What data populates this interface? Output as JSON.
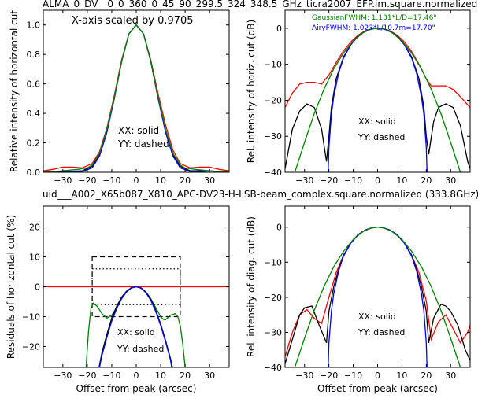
{
  "figure": {
    "top_title": "ALMA_0_DV__0_0_360_0_45_90_299.5_324_348.5_GHz_ticra2007_EFP.im.square.normalized",
    "mid_title": "uid___A002_X65b087_X810_APC-DV23-H-LSB-beam_complex.square.normalized (333.8GHz)",
    "mid_title_color": "#ff0000"
  },
  "colors": {
    "red": "#ff0000",
    "black": "#000000",
    "blue": "#0000ff",
    "green": "#008000"
  },
  "chart_data": [
    {
      "type": "line",
      "ylabel": "Relative intensity of horizontal cut",
      "xlabel": "",
      "xlim": [
        -38,
        38
      ],
      "ylim": [
        0,
        1.1
      ],
      "xticks": [
        -30,
        -20,
        -10,
        0,
        10,
        20,
        30
      ],
      "yticks": [
        0.0,
        0.2,
        0.4,
        0.6,
        0.8,
        1.0
      ],
      "ytick_labels": [
        "0.0",
        "0.2",
        "0.4",
        "0.6",
        "0.8",
        "1.0"
      ],
      "annotations": [
        "X-axis scaled by 0.9705",
        "XX: solid",
        "YY: dashed"
      ],
      "series": [
        {
          "color": "red",
          "x": [
            -38,
            -34,
            -30,
            -26,
            -22,
            -18,
            -15,
            -12,
            -9,
            -6,
            -3,
            0,
            3,
            6,
            9,
            12,
            15,
            18,
            22,
            26,
            30,
            34,
            38
          ],
          "y": [
            0.01,
            0.02,
            0.035,
            0.035,
            0.03,
            0.06,
            0.14,
            0.3,
            0.52,
            0.76,
            0.94,
            1.0,
            0.94,
            0.76,
            0.53,
            0.32,
            0.15,
            0.06,
            0.03,
            0.035,
            0.035,
            0.02,
            0.01
          ]
        },
        {
          "color": "black",
          "x": [
            -38,
            -30,
            -22,
            -18,
            -15,
            -12,
            -9,
            -6,
            -3,
            0,
            3,
            6,
            9,
            12,
            15,
            18,
            22,
            30,
            38
          ],
          "y": [
            0.0,
            0.005,
            0.01,
            0.04,
            0.12,
            0.28,
            0.5,
            0.75,
            0.94,
            1.0,
            0.94,
            0.75,
            0.5,
            0.28,
            0.12,
            0.04,
            0.01,
            0.01,
            0.0
          ]
        },
        {
          "color": "blue",
          "x": [
            -38,
            -30,
            -22,
            -18,
            -15,
            -12,
            -9,
            -6,
            -3,
            0,
            3,
            6,
            9,
            12,
            15,
            18,
            22,
            30,
            38
          ],
          "y": [
            0.0,
            0.0,
            0.005,
            0.03,
            0.11,
            0.27,
            0.5,
            0.75,
            0.94,
            1.0,
            0.94,
            0.75,
            0.5,
            0.27,
            0.11,
            0.03,
            0.005,
            0.0,
            0.0
          ]
        },
        {
          "color": "green",
          "x": [
            -38,
            -30,
            -24,
            -20,
            -18,
            -15,
            -12,
            -9,
            -6,
            -3,
            0,
            3,
            6,
            9,
            12,
            15,
            18,
            20,
            24,
            30,
            38
          ],
          "y": [
            0.0,
            0.01,
            0.02,
            0.03,
            0.05,
            0.13,
            0.29,
            0.51,
            0.75,
            0.94,
            1.0,
            0.94,
            0.75,
            0.51,
            0.29,
            0.13,
            0.05,
            0.03,
            0.02,
            0.01,
            0.0
          ]
        }
      ]
    },
    {
      "type": "line",
      "ylabel": "Rel. intensity of horiz. cut (dB)",
      "xlabel": "",
      "xlim": [
        -38,
        38
      ],
      "ylim": [
        -40,
        5
      ],
      "xticks": [
        -30,
        -20,
        -10,
        0,
        10,
        20,
        30
      ],
      "yticks": [
        -40,
        -30,
        -20,
        -10,
        0
      ],
      "ytick_labels": [
        "−40",
        "−30",
        "−20",
        "−10",
        "0"
      ],
      "annotations": [
        "GaussianFWHM: 1.131*L/D=17.46\"",
        "AiryFWHM: 1.023*L/10.7m=17.70\"",
        "XX: solid",
        "YY: dashed"
      ],
      "annotation_colors": [
        "green",
        "blue",
        "black",
        "black"
      ],
      "series": [
        {
          "color": "red",
          "x": [
            -38,
            -35,
            -32,
            -29,
            -26,
            -23,
            -20,
            -17,
            -14,
            -11,
            -8,
            -5,
            -2,
            0,
            2,
            5,
            8,
            11,
            14,
            17,
            20,
            22,
            25,
            28,
            31,
            34,
            38
          ],
          "y": [
            -22,
            -18,
            -15.5,
            -15,
            -15,
            -15.5,
            -13,
            -9.5,
            -6.3,
            -3.8,
            -1.9,
            -0.7,
            -0.1,
            0,
            -0.1,
            -0.7,
            -1.9,
            -3.8,
            -6.5,
            -10,
            -14,
            -16,
            -16,
            -16,
            -17,
            -19,
            -22
          ]
        },
        {
          "color": "black",
          "x": [
            -38,
            -35,
            -32,
            -29,
            -26,
            -23,
            -21,
            -20,
            -19,
            -17,
            -14,
            -11,
            -8,
            -5,
            -2,
            0,
            2,
            5,
            8,
            11,
            14,
            17,
            19,
            20,
            21,
            23,
            25,
            28,
            31,
            34,
            37,
            38
          ],
          "y": [
            -39,
            -28,
            -23,
            -21,
            -22,
            -28,
            -37,
            -30,
            -22,
            -14,
            -8,
            -4.5,
            -2.1,
            -0.8,
            -0.1,
            0,
            -0.1,
            -0.8,
            -2.1,
            -4.5,
            -8,
            -14,
            -22,
            -30,
            -35,
            -26,
            -22,
            -21,
            -22,
            -27,
            -37,
            -39
          ]
        },
        {
          "color": "blue",
          "x": [
            -20.3,
            -20,
            -19,
            -18,
            -16,
            -14,
            -11,
            -8,
            -5,
            -2,
            0,
            2,
            5,
            8,
            11,
            14,
            16,
            18,
            19,
            20,
            20.3
          ],
          "y": [
            -40,
            -33,
            -24,
            -19,
            -12.5,
            -8.3,
            -4.6,
            -2.2,
            -0.8,
            -0.1,
            0,
            -0.1,
            -0.8,
            -2.2,
            -4.6,
            -8.3,
            -12.5,
            -19,
            -24,
            -33,
            -40
          ]
        },
        {
          "color": "green",
          "x": [
            -34,
            -30,
            -26,
            -22,
            -18,
            -14,
            -10,
            -6,
            -3,
            0,
            3,
            6,
            10,
            14,
            18,
            22,
            26,
            30,
            34
          ],
          "y": [
            -40,
            -31.7,
            -23.7,
            -16.9,
            -11.3,
            -6.9,
            -3.5,
            -1.3,
            -0.3,
            0,
            -0.3,
            -1.3,
            -3.5,
            -6.9,
            -11.3,
            -16.9,
            -23.7,
            -31.7,
            -40
          ]
        }
      ]
    },
    {
      "type": "line",
      "ylabel": "Residuals of horizontal cut (%)",
      "xlabel": "Offset from peak (arcsec)",
      "xlim": [
        -38,
        38
      ],
      "ylim": [
        -27,
        27
      ],
      "xticks": [
        -30,
        -20,
        -10,
        0,
        10,
        20,
        30
      ],
      "yticks": [
        -20,
        -10,
        0,
        10,
        20
      ],
      "ytick_labels": [
        "−20",
        "−10",
        "0",
        "10",
        "20"
      ],
      "annotations": [
        "XX: solid",
        "YY: dashed"
      ],
      "boxes": [
        {
          "style": "dashed",
          "x": [
            -18,
            18
          ],
          "y": [
            -10,
            10
          ]
        },
        {
          "style": "dotted",
          "x": [
            -18,
            18
          ],
          "y": [
            -6,
            6
          ]
        }
      ],
      "series": [
        {
          "color": "red",
          "x": [
            -38,
            38
          ],
          "y": [
            0,
            0
          ]
        },
        {
          "color": "green",
          "x": [
            -20.5,
            -19.5,
            -18.5,
            -17.5,
            -16,
            -14,
            -12,
            -10,
            -8,
            -6,
            -4,
            -2,
            0,
            2,
            4,
            6,
            8,
            10,
            11,
            12,
            14,
            16,
            17,
            18,
            19,
            20
          ],
          "y": [
            -27,
            -15,
            -7,
            -5.5,
            -6.5,
            -9,
            -10.5,
            -9.5,
            -7,
            -4,
            -1.8,
            -0.4,
            0,
            -0.4,
            -1.8,
            -4,
            -7,
            -10,
            -10.9,
            -11,
            -9.5,
            -9,
            -10,
            -13,
            -19,
            -27
          ]
        },
        {
          "color": "black",
          "x": [
            -15.2,
            -14,
            -12,
            -10,
            -8,
            -6,
            -4,
            -2,
            0,
            2,
            4,
            6,
            8,
            10,
            12,
            14,
            14.8
          ],
          "y": [
            -27,
            -22,
            -16,
            -10.5,
            -6.5,
            -3.5,
            -1.5,
            -0.3,
            0,
            -0.4,
            -1.8,
            -4.2,
            -7.8,
            -12.5,
            -18,
            -24,
            -27
          ]
        },
        {
          "color": "blue",
          "x": [
            -15,
            -14,
            -12,
            -10,
            -8,
            -6,
            -4,
            -2,
            0,
            2,
            4,
            6,
            8,
            10,
            12,
            14,
            14.5
          ],
          "y": [
            -27,
            -23,
            -17,
            -11.5,
            -7.3,
            -4,
            -1.7,
            -0.4,
            0,
            -0.5,
            -2,
            -4.6,
            -8.3,
            -13,
            -18.5,
            -24.5,
            -27
          ]
        }
      ]
    },
    {
      "type": "line",
      "ylabel": "Rel. intensity of diag. cut (dB)",
      "xlabel": "Offset from peak (arcsec)",
      "xlim": [
        -38,
        38
      ],
      "ylim": [
        -40,
        6
      ],
      "xticks": [
        -30,
        -20,
        -10,
        0,
        10,
        20,
        30
      ],
      "yticks": [
        -40,
        -30,
        -20,
        -10,
        0
      ],
      "ytick_labels": [
        "−40",
        "−30",
        "−20",
        "−10",
        "0"
      ],
      "annotations": [
        "XX: solid",
        "YY: dashed"
      ],
      "series": [
        {
          "color": "red",
          "x": [
            -38,
            -35,
            -32,
            -29,
            -26,
            -23,
            -20,
            -17,
            -14,
            -11,
            -8,
            -5,
            -2,
            0,
            2,
            5,
            8,
            11,
            14,
            17,
            20,
            22,
            25,
            28,
            31,
            34,
            37,
            38
          ],
          "y": [
            -37,
            -30,
            -25,
            -23.5,
            -26,
            -27.5,
            -20,
            -13,
            -8,
            -4.5,
            -2.1,
            -0.8,
            -0.1,
            0,
            -0.1,
            -0.8,
            -2.1,
            -4.5,
            -8,
            -13,
            -21,
            -32,
            -27,
            -25,
            -29,
            -33,
            -30,
            -28
          ]
        },
        {
          "color": "black",
          "x": [
            -38,
            -35,
            -32,
            -30,
            -27,
            -24,
            -21,
            -20,
            -18,
            -16,
            -14,
            -11,
            -8,
            -5,
            -2,
            0,
            2,
            5,
            8,
            11,
            14,
            16,
            18,
            20,
            21,
            23,
            26,
            28,
            30,
            33,
            36,
            38
          ],
          "y": [
            -39,
            -32,
            -25,
            -23,
            -22.5,
            -28,
            -33,
            -24,
            -17,
            -12,
            -8,
            -4.5,
            -2.1,
            -0.8,
            -0.1,
            0,
            -0.1,
            -0.8,
            -2.1,
            -4.5,
            -8,
            -12,
            -17,
            -24,
            -33,
            -26,
            -22,
            -22.5,
            -24,
            -28,
            -35,
            -38
          ]
        },
        {
          "color": "blue",
          "x": [
            -20.3,
            -20,
            -19,
            -18,
            -16,
            -14,
            -11,
            -8,
            -5,
            -2,
            0,
            2,
            5,
            8,
            11,
            14,
            16,
            18,
            19,
            20,
            20.3
          ],
          "y": [
            -40,
            -33,
            -24,
            -19,
            -12.5,
            -8.3,
            -4.6,
            -2.2,
            -0.8,
            -0.1,
            0,
            -0.1,
            -0.8,
            -2.2,
            -4.6,
            -8.3,
            -12.5,
            -19,
            -24,
            -33,
            -40
          ]
        },
        {
          "color": "green",
          "x": [
            -34,
            -30,
            -26,
            -22,
            -18,
            -14,
            -10,
            -6,
            -3,
            0,
            3,
            6,
            10,
            14,
            18,
            22,
            26,
            30,
            34
          ],
          "y": [
            -40,
            -31.7,
            -23.7,
            -16.9,
            -11.3,
            -6.9,
            -3.5,
            -1.3,
            -0.3,
            0,
            -0.3,
            -1.3,
            -3.5,
            -6.9,
            -11.3,
            -16.9,
            -23.7,
            -31.7,
            -40
          ]
        }
      ]
    }
  ]
}
